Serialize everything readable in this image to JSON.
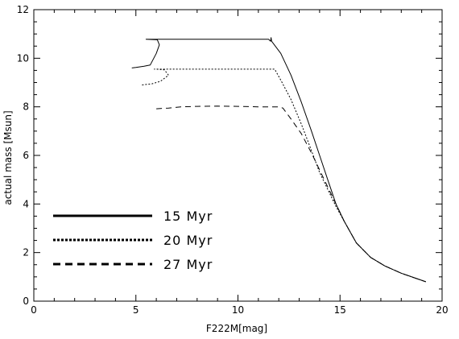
{
  "chart_data": {
    "type": "line",
    "title": "",
    "xlabel": "F222M[mag]",
    "ylabel": "actual mass [Msun]",
    "xlim": [
      0,
      20
    ],
    "ylim": [
      0,
      12
    ],
    "xticks": [
      0,
      5,
      10,
      15,
      20
    ],
    "yticks": [
      0,
      2,
      4,
      6,
      8,
      10,
      12
    ],
    "grid": false,
    "legend_position": "bottom-left",
    "series": [
      {
        "name": "15 Myr",
        "style": "solid",
        "points": [
          [
            4.8,
            9.6
          ],
          [
            5.0,
            9.62
          ],
          [
            5.4,
            9.67
          ],
          [
            5.7,
            9.72
          ],
          [
            6.0,
            10.2
          ],
          [
            6.15,
            10.55
          ],
          [
            6.05,
            10.76
          ],
          [
            5.5,
            10.78
          ],
          [
            8.0,
            10.78
          ],
          [
            10.0,
            10.78
          ],
          [
            11.5,
            10.78
          ],
          [
            11.6,
            10.7
          ],
          [
            11.62,
            10.85
          ],
          [
            11.65,
            10.7
          ],
          [
            12.1,
            10.2
          ],
          [
            12.6,
            9.3
          ],
          [
            13.1,
            8.2
          ],
          [
            13.6,
            7.0
          ],
          [
            14.0,
            6.0
          ],
          [
            14.4,
            5.0
          ],
          [
            14.8,
            4.0
          ],
          [
            15.2,
            3.3
          ],
          [
            15.8,
            2.4
          ],
          [
            16.5,
            1.8
          ],
          [
            17.2,
            1.45
          ],
          [
            18.0,
            1.15
          ],
          [
            19.2,
            0.8
          ]
        ]
      },
      {
        "name": "20 Myr",
        "style": "dotted",
        "points": [
          [
            5.3,
            8.9
          ],
          [
            5.8,
            8.95
          ],
          [
            6.2,
            9.05
          ],
          [
            6.6,
            9.3
          ],
          [
            6.4,
            9.52
          ],
          [
            6.0,
            9.55
          ],
          [
            5.9,
            9.55
          ],
          [
            8.0,
            9.55
          ],
          [
            10.0,
            9.55
          ],
          [
            11.8,
            9.55
          ],
          [
            12.1,
            9.1
          ],
          [
            12.6,
            8.3
          ],
          [
            13.1,
            7.3
          ],
          [
            13.6,
            6.2
          ],
          [
            14.0,
            5.3
          ],
          [
            14.4,
            4.6
          ],
          [
            14.8,
            3.9
          ],
          [
            15.2,
            3.3
          ],
          [
            15.8,
            2.4
          ],
          [
            16.5,
            1.8
          ],
          [
            17.2,
            1.45
          ],
          [
            18.0,
            1.15
          ],
          [
            19.2,
            0.8
          ]
        ]
      },
      {
        "name": "27 Myr",
        "style": "dashed",
        "points": [
          [
            6.0,
            7.92
          ],
          [
            6.6,
            7.95
          ],
          [
            7.2,
            8.0
          ],
          [
            8.0,
            8.02
          ],
          [
            9.0,
            8.03
          ],
          [
            10.0,
            8.02
          ],
          [
            11.0,
            8.0
          ],
          [
            12.0,
            8.0
          ],
          [
            12.2,
            7.95
          ],
          [
            12.6,
            7.5
          ],
          [
            13.1,
            6.9
          ],
          [
            13.6,
            6.1
          ],
          [
            14.0,
            5.4
          ],
          [
            14.4,
            4.7
          ],
          [
            14.8,
            4.0
          ],
          [
            15.2,
            3.3
          ],
          [
            15.8,
            2.4
          ],
          [
            16.5,
            1.8
          ],
          [
            17.2,
            1.45
          ],
          [
            18.0,
            1.15
          ],
          [
            19.2,
            0.8
          ]
        ]
      }
    ]
  }
}
